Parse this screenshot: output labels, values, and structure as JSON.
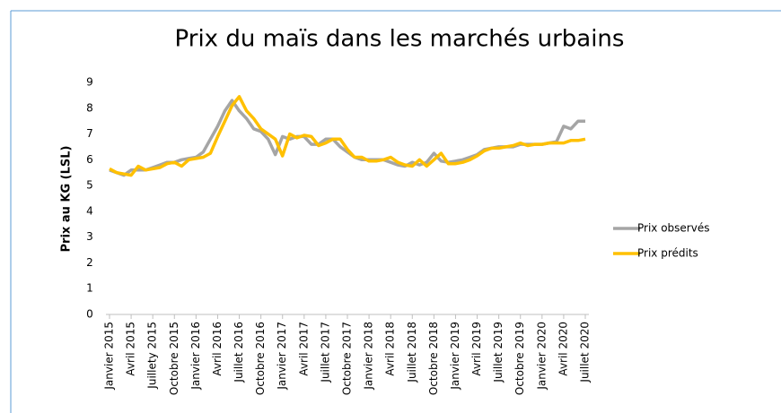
{
  "chart_data": {
    "type": "line",
    "title": "Prix du maïs dans les marchés urbains",
    "y_label": "Prix au KG (LSL)",
    "categories": [
      "Janvier 2015",
      null,
      null,
      "Avril 2015",
      null,
      null,
      "Juillety 2015",
      null,
      null,
      "Octobre 2015",
      null,
      null,
      "Janvier 2016",
      null,
      null,
      "Avril 2016",
      null,
      null,
      "Juillet 2016",
      null,
      null,
      "Octobre 2016",
      null,
      null,
      "Janvier 2017",
      null,
      null,
      "Avril 2017",
      null,
      null,
      "Juillet 2017",
      null,
      null,
      "Octobre 2017",
      null,
      null,
      "Janvier 2018",
      null,
      null,
      "Avril 2018",
      null,
      null,
      "Juillet 2018",
      null,
      null,
      "Octobre 2018",
      null,
      null,
      "Janvier 2019",
      null,
      null,
      "Avril 2019",
      null,
      null,
      "Juillet 2019",
      null,
      null,
      "Octobre 2019",
      null,
      null,
      "Janvier 2020",
      null,
      null,
      "Avril 2020",
      null,
      null,
      "Juillet 2020"
    ],
    "series": [
      {
        "name": "Prix observés",
        "color": "#a5a5a5",
        "values": [
          5.6,
          5.5,
          5.4,
          5.6,
          5.6,
          5.6,
          5.7,
          5.8,
          5.9,
          5.9,
          6.0,
          6.05,
          6.1,
          6.3,
          6.8,
          7.3,
          7.9,
          8.3,
          7.9,
          7.6,
          7.2,
          7.1,
          6.8,
          6.2,
          6.9,
          6.8,
          6.9,
          6.9,
          6.6,
          6.6,
          6.8,
          6.8,
          6.5,
          6.3,
          6.1,
          6.0,
          6.0,
          6.0,
          6.0,
          5.9,
          5.8,
          5.75,
          5.9,
          5.8,
          5.9,
          6.25,
          5.95,
          5.9,
          5.95,
          6.0,
          6.1,
          6.2,
          6.4,
          6.45,
          6.5,
          6.5,
          6.5,
          6.6,
          6.6,
          6.6,
          6.6,
          6.65,
          6.7,
          7.3,
          7.2,
          7.5,
          7.5
        ]
      },
      {
        "name": "Prix prédits",
        "color": "#ffc000",
        "values": [
          5.65,
          5.5,
          5.45,
          5.4,
          5.75,
          5.6,
          5.65,
          5.7,
          5.85,
          5.9,
          5.75,
          6.0,
          6.05,
          6.1,
          6.25,
          6.9,
          7.5,
          8.1,
          8.45,
          7.9,
          7.6,
          7.2,
          7.0,
          6.8,
          6.15,
          7.0,
          6.85,
          6.95,
          6.9,
          6.55,
          6.65,
          6.8,
          6.8,
          6.4,
          6.1,
          6.1,
          5.95,
          5.95,
          6.0,
          6.1,
          5.9,
          5.8,
          5.75,
          6.0,
          5.75,
          6.0,
          6.25,
          5.85,
          5.85,
          5.9,
          6.0,
          6.15,
          6.35,
          6.45,
          6.45,
          6.5,
          6.55,
          6.65,
          6.55,
          6.6,
          6.6,
          6.65,
          6.65,
          6.65,
          6.75,
          6.75,
          6.8
        ]
      }
    ],
    "ylim": [
      0,
      9
    ],
    "yticks": [
      0,
      1,
      2,
      3,
      4,
      5,
      6,
      7,
      8,
      9
    ],
    "grid": false,
    "legend": "right"
  }
}
